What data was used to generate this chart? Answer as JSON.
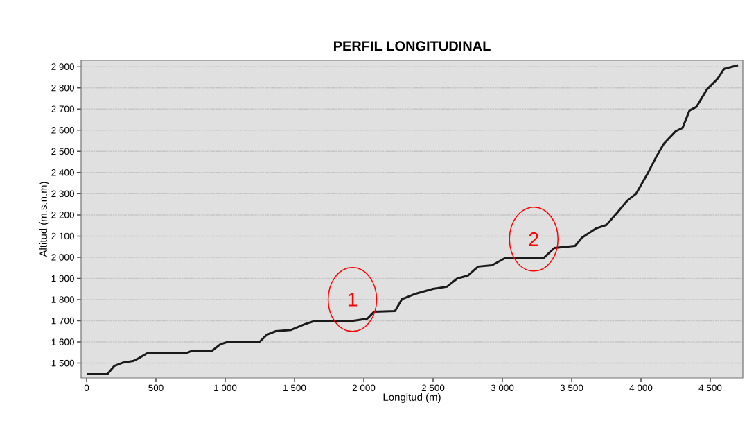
{
  "chart_data": {
    "type": "line",
    "title": "PERFIL LONGITUDINAL",
    "xlabel": "Longitud (m)",
    "ylabel": "Altitud (m.s.n.m)",
    "x": [
      0,
      150,
      200,
      265,
      335,
      375,
      435,
      515,
      725,
      750,
      900,
      965,
      1025,
      1175,
      1250,
      1300,
      1365,
      1475,
      1575,
      1650,
      1925,
      2025,
      2075,
      2225,
      2275,
      2375,
      2500,
      2600,
      2675,
      2750,
      2825,
      2925,
      3025,
      3300,
      3375,
      3525,
      3575,
      3675,
      3750,
      3825,
      3900,
      3965,
      4050,
      4115,
      4165,
      4250,
      4300,
      4350,
      4400,
      4475,
      4550,
      4600,
      4700
    ],
    "series": [
      {
        "color": "#1a1a1a",
        "values": [
          1448,
          1448,
          1487,
          1503,
          1510,
          1523,
          1546,
          1549,
          1549,
          1556,
          1556,
          1589,
          1602,
          1602,
          1602,
          1634,
          1651,
          1657,
          1684,
          1700,
          1700,
          1710,
          1743,
          1746,
          1802,
          1828,
          1851,
          1861,
          1900,
          1913,
          1956,
          1962,
          1998,
          1998,
          2044,
          2054,
          2093,
          2136,
          2152,
          2208,
          2267,
          2300,
          2398,
          2480,
          2536,
          2595,
          2611,
          2693,
          2710,
          2792,
          2841,
          2890,
          2907
        ]
      }
    ],
    "xlim": [
      -40,
      4735
    ],
    "ylim": [
      1430,
      2930
    ],
    "xticks": [
      0,
      500,
      {
        "value": 1000,
        "label": "1 000"
      },
      {
        "value": 1500,
        "label": "1 500"
      },
      {
        "value": 2000,
        "label": "2 000"
      },
      {
        "value": 2500,
        "label": "2 500"
      },
      {
        "value": 3000,
        "label": "3 000"
      },
      {
        "value": 3500,
        "label": "3 500"
      },
      {
        "value": 4000,
        "label": "4 000"
      },
      {
        "value": 4500,
        "label": "4 500"
      }
    ],
    "yticks": [
      {
        "value": 1500,
        "label": "1 500"
      },
      {
        "value": 1600,
        "label": "1 600"
      },
      {
        "value": 1700,
        "label": "1 700"
      },
      {
        "value": 1800,
        "label": "1 800"
      },
      {
        "value": 1900,
        "label": "1 900"
      },
      {
        "value": 2000,
        "label": "2 000"
      },
      {
        "value": 2100,
        "label": "2 100"
      },
      {
        "value": 2200,
        "label": "2 200"
      },
      {
        "value": 2300,
        "label": "2 300"
      },
      {
        "value": 2400,
        "label": "2 400"
      },
      {
        "value": 2500,
        "label": "2 500"
      },
      {
        "value": 2600,
        "label": "2 600"
      },
      {
        "value": 2700,
        "label": "2 700"
      },
      {
        "value": 2800,
        "label": "2 800"
      },
      {
        "value": 2900,
        "label": "2 900"
      }
    ],
    "annotations": [
      "1",
      "2"
    ],
    "grid": "y",
    "marker": "none",
    "line_style": "solid"
  }
}
